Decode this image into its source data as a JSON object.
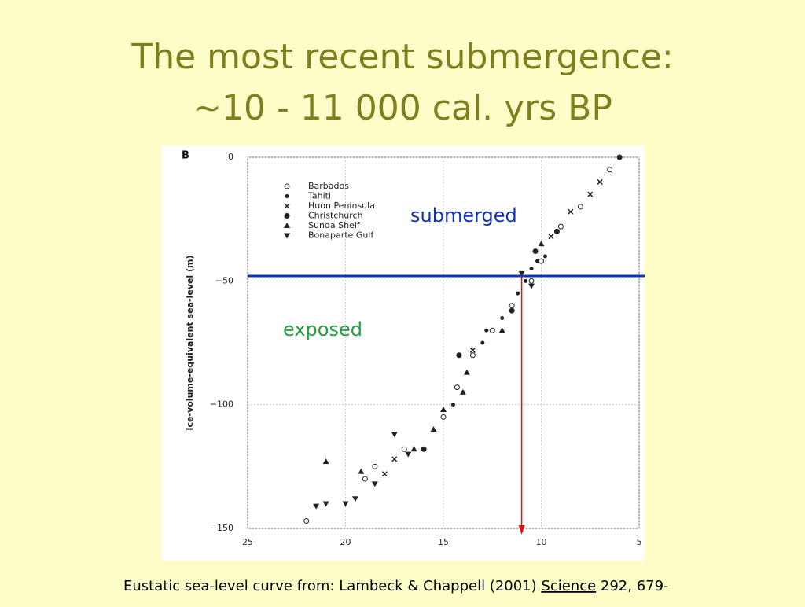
{
  "slide": {
    "title_lines": [
      "The most recent submergence:",
      "~10 - 11 000 cal. yrs BP"
    ],
    "caption": {
      "before": "Eustatic sea-level curve from: Lambeck & Chappell (2001) ",
      "journal": "Science",
      "after": " 292, 679-"
    }
  },
  "chart_data": {
    "type": "scatter",
    "panel_label": "B",
    "y_label": "Ice-volume-equivalent sea-level (m)",
    "xlim": [
      25,
      5
    ],
    "xticks": [
      25,
      20,
      15,
      10,
      5
    ],
    "ylim": [
      -150,
      0
    ],
    "yticks": [
      0,
      {
        "value": -50,
        "label": "−50"
      },
      {
        "value": -100,
        "label": "−100"
      },
      {
        "value": -150,
        "label": "−150"
      }
    ],
    "grid": true,
    "legend": "top-left",
    "series": [
      {
        "name": "Barbados",
        "marker": "circle-open",
        "color": "#222222",
        "x": [
          22,
          19,
          18.5,
          17,
          15,
          14.3,
          13.5,
          12.5,
          11.5,
          10.5,
          10,
          9,
          8,
          6.5
        ],
        "values": [
          -147,
          -130,
          -125,
          -118,
          -105,
          -93,
          -80,
          -70,
          -60,
          -50,
          -42,
          -28,
          -20,
          -5
        ]
      },
      {
        "name": "Tahiti",
        "marker": "dot",
        "color": "#222222",
        "x": [
          14.5,
          14,
          13,
          12.8,
          12,
          11.2,
          10.8,
          10.5,
          10.2,
          9.8
        ],
        "values": [
          -100,
          -95,
          -75,
          -70,
          -65,
          -55,
          -50,
          -45,
          -42,
          -40
        ]
      },
      {
        "name": "Huon Peninsula",
        "marker": "cross",
        "color": "#222222",
        "x": [
          18,
          17.5,
          13.5,
          9.5,
          8.5,
          7.5,
          7
        ],
        "values": [
          -128,
          -122,
          -78,
          -32,
          -22,
          -15,
          -10
        ]
      },
      {
        "name": "Christchurch",
        "marker": "circle",
        "color": "#222222",
        "x": [
          16,
          14.2,
          11.5,
          10.3,
          9.2,
          6
        ],
        "values": [
          -118,
          -80,
          -62,
          -38,
          -30,
          0
        ]
      },
      {
        "name": "Sunda Shelf",
        "marker": "triangle",
        "color": "#222222",
        "x": [
          21,
          19.2,
          16.5,
          15.5,
          15,
          14,
          13.8,
          12,
          10
        ],
        "values": [
          -123,
          -127,
          -118,
          -110,
          -102,
          -95,
          -87,
          -70,
          -35
        ]
      },
      {
        "name": "Bonaparte Gulf",
        "marker": "triangle-down",
        "color": "#222222",
        "x": [
          21.5,
          21,
          20,
          19.5,
          18.5,
          17.5,
          16.8,
          11,
          10.5
        ],
        "values": [
          -141,
          -140,
          -140,
          -138,
          -132,
          -112,
          -120,
          -47,
          -52
        ]
      }
    ],
    "reference_lines": {
      "y": -48,
      "y_color": "#1133bb",
      "x": 11,
      "x_color": "#dd1111"
    },
    "annotations": [
      {
        "text": "submerged",
        "color": "#1133bb"
      },
      {
        "text": "exposed",
        "color": "#22a040"
      }
    ]
  }
}
